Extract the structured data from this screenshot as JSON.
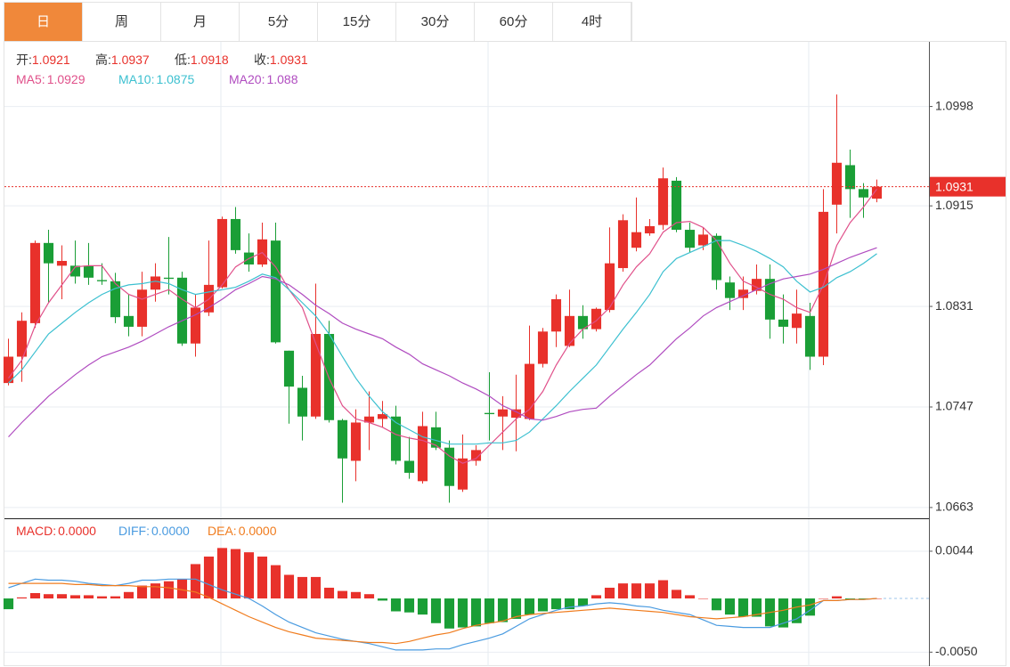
{
  "tabs": [
    "日",
    "周",
    "月",
    "5分",
    "15分",
    "30分",
    "60分",
    "4时"
  ],
  "active_tab": 0,
  "chart_data": [
    {
      "type": "candlestick",
      "header": [
        {
          "name": "开:",
          "value": 1.0921
        },
        {
          "name": "高:",
          "value": 1.0937
        },
        {
          "name": "低:",
          "value": 1.0918
        },
        {
          "name": "收:",
          "value": 1.0931
        }
      ],
      "header_value_color": "#e8312b",
      "categories": [
        null,
        null,
        null,
        null,
        null,
        null,
        null,
        null,
        null,
        null,
        null,
        null,
        null,
        null,
        null,
        null,
        null,
        null,
        null,
        null,
        null,
        null,
        null,
        null,
        null,
        null,
        null,
        null,
        null,
        null,
        null,
        null,
        null,
        null,
        null,
        null,
        null,
        null,
        null,
        null,
        null,
        null,
        null,
        null,
        null,
        null,
        null,
        null,
        null,
        null,
        null,
        null,
        null,
        null,
        null,
        null,
        null,
        null,
        null,
        null,
        null,
        null,
        null,
        null,
        null,
        null
      ],
      "open": [
        1.0767,
        1.0789,
        1.0817,
        1.0884,
        1.0865,
        1.0865,
        1.0865,
        1.0853,
        1.0852,
        1.0823,
        1.0814,
        1.0845,
        1.0855,
        1.0855,
        1.08,
        1.0826,
        1.0847,
        1.0904,
        1.0876,
        1.0866,
        1.0886,
        1.0794,
        1.0763,
        1.0739,
        1.0808,
        1.0736,
        1.0702,
        1.0734,
        1.0737,
        1.0739,
        1.0702,
        1.0685,
        1.073,
        1.0713,
        1.0678,
        1.0702,
        1.0742,
        1.0739,
        1.0738,
        1.0737,
        1.0783,
        1.081,
        1.0798,
        1.0823,
        1.0812,
        1.0828,
        1.0863,
        1.088,
        1.0892,
        1.0899,
        1.0936,
        1.0895,
        1.0882,
        1.089,
        1.0851,
        1.0838,
        1.0844,
        1.0854,
        1.082,
        1.0813,
        1.0823,
        1.0789,
        1.0916,
        1.0949,
        1.0929,
        1.0921
      ],
      "high": [
        1.0804,
        1.0826,
        1.0886,
        1.0895,
        1.0882,
        1.0886,
        1.0884,
        1.0867,
        1.0859,
        1.0841,
        1.086,
        1.0867,
        1.0889,
        1.086,
        1.0841,
        1.0886,
        1.0906,
        1.0914,
        1.0892,
        1.0901,
        1.0901,
        1.0794,
        1.0773,
        1.085,
        1.0819,
        1.0737,
        1.0745,
        1.076,
        1.0752,
        1.0748,
        1.0722,
        1.0743,
        1.0743,
        1.0719,
        1.0724,
        1.0715,
        1.0776,
        1.0756,
        1.0774,
        1.0815,
        1.0813,
        1.0841,
        1.0845,
        1.0832,
        1.083,
        1.0897,
        1.0908,
        1.0922,
        1.0904,
        1.0947,
        1.0939,
        1.0901,
        1.0897,
        1.0892,
        1.0856,
        1.0856,
        1.0866,
        1.0866,
        1.0841,
        1.0845,
        1.0834,
        1.0929,
        1.1008,
        1.0962,
        1.0934,
        1.0937
      ],
      "low": [
        1.0765,
        1.0768,
        1.0813,
        1.0834,
        1.0837,
        1.085,
        1.0849,
        1.0849,
        1.0817,
        1.0806,
        1.0806,
        1.0835,
        1.0841,
        1.0798,
        1.0789,
        1.0823,
        1.0846,
        1.0875,
        1.086,
        1.0864,
        1.08,
        1.0733,
        1.0719,
        1.0737,
        1.0734,
        1.0667,
        1.0685,
        1.0711,
        1.073,
        1.0699,
        1.0687,
        1.0683,
        1.0711,
        1.0667,
        1.0676,
        1.0698,
        1.0719,
        1.0711,
        1.071,
        1.0736,
        1.078,
        1.0797,
        1.0797,
        1.0804,
        1.081,
        1.0826,
        1.086,
        1.0877,
        1.089,
        1.0895,
        1.0893,
        1.0876,
        1.0878,
        1.0845,
        1.0828,
        1.0828,
        1.0841,
        1.0804,
        1.08,
        1.08,
        1.0778,
        1.0782,
        1.0892,
        1.0905,
        1.0905,
        1.0918
      ],
      "close": [
        1.0789,
        1.0819,
        1.0884,
        1.0867,
        1.0869,
        1.0856,
        1.0855,
        1.0852,
        1.0822,
        1.0814,
        1.0845,
        1.0856,
        1.0854,
        1.08,
        1.083,
        1.0849,
        1.0904,
        1.0878,
        1.0866,
        1.0887,
        1.0801,
        1.0764,
        1.0739,
        1.0808,
        1.0736,
        1.0704,
        1.0734,
        1.0739,
        1.0741,
        1.0702,
        1.0692,
        1.0731,
        1.0713,
        1.0681,
        1.0704,
        1.0711,
        1.0741,
        1.0745,
        1.0745,
        1.0783,
        1.081,
        1.0837,
        1.0823,
        1.0812,
        1.0829,
        1.0867,
        1.0903,
        1.0893,
        1.0898,
        1.0938,
        1.0895,
        1.088,
        1.0891,
        1.0853,
        1.0838,
        1.0845,
        1.0854,
        1.082,
        1.0814,
        1.0825,
        1.0789,
        1.091,
        1.0951,
        1.0929,
        1.0922,
        1.0931
      ],
      "up_color": "#e8312b",
      "down_color": "#1a9e36",
      "series": [
        {
          "name": "MA5:",
          "current": 1.0929,
          "color": "#e0508a",
          "values": [
            1.0771,
            1.0786,
            1.0815,
            1.0834,
            1.0849,
            1.0864,
            1.0865,
            1.0865,
            1.085,
            1.0841,
            1.0837,
            1.0841,
            1.0845,
            1.0837,
            1.083,
            1.0837,
            1.0849,
            1.0864,
            1.0871,
            1.0876,
            1.0864,
            1.0845,
            1.083,
            1.08,
            1.0771,
            1.0748,
            1.0737,
            1.0734,
            1.073,
            1.0724,
            1.0721,
            1.0719,
            1.0715,
            1.0706,
            1.07,
            1.0704,
            1.0715,
            1.0726,
            1.0737,
            1.0745,
            1.076,
            1.0782,
            1.08,
            1.0812,
            1.0819,
            1.083,
            1.0849,
            1.0864,
            1.0875,
            1.0893,
            1.0901,
            1.0902,
            1.0897,
            1.0886,
            1.0867,
            1.0852,
            1.0847,
            1.0841,
            1.0837,
            1.083,
            1.0826,
            1.0849,
            1.0882,
            1.0901,
            1.0914,
            1.0929
          ]
        },
        {
          "name": "MA10:",
          "current": 1.0875,
          "color": "#3cc0d0",
          "values": [
            1.0767,
            1.0778,
            1.0793,
            1.0808,
            1.0817,
            1.0826,
            1.0834,
            1.0841,
            1.0846,
            1.0849,
            1.085,
            1.0852,
            1.085,
            1.0845,
            1.0841,
            1.0843,
            1.0845,
            1.0847,
            1.0852,
            1.0858,
            1.0855,
            1.0845,
            1.0834,
            1.0823,
            1.0808,
            1.0789,
            1.0771,
            1.0756,
            1.0743,
            1.0734,
            1.0728,
            1.0722,
            1.0719,
            1.0716,
            1.0716,
            1.0716,
            1.0717,
            1.0717,
            1.0719,
            1.0726,
            1.0737,
            1.0748,
            1.076,
            1.0771,
            1.0782,
            1.0797,
            1.0812,
            1.0826,
            1.0841,
            1.086,
            1.0871,
            1.0876,
            1.0881,
            1.0886,
            1.0886,
            1.0882,
            1.0877,
            1.0871,
            1.0864,
            1.0852,
            1.0843,
            1.0847,
            1.0855,
            1.086,
            1.0867,
            1.0875
          ]
        },
        {
          "name": "MA20:",
          "current": 1.088,
          "color": "#b04cc0",
          "values": [
            1.0722,
            1.0734,
            1.0745,
            1.0756,
            1.0765,
            1.0774,
            1.0782,
            1.0789,
            1.0793,
            1.0797,
            1.0802,
            1.0808,
            1.0814,
            1.0819,
            1.0824,
            1.083,
            1.0837,
            1.0845,
            1.085,
            1.0856,
            1.0854,
            1.0849,
            1.0841,
            1.0832,
            1.0825,
            1.0817,
            1.0812,
            1.0808,
            1.0804,
            1.0797,
            1.0791,
            1.0783,
            1.0778,
            1.0773,
            1.0767,
            1.0762,
            1.0756,
            1.0748,
            1.0743,
            1.0737,
            1.0736,
            1.0739,
            1.0743,
            1.0745,
            1.0746,
            1.0756,
            1.0765,
            1.0774,
            1.0782,
            1.0793,
            1.0804,
            1.0813,
            1.0823,
            1.083,
            1.0835,
            1.084,
            1.0845,
            1.085,
            1.0854,
            1.0856,
            1.0858,
            1.0862,
            1.0867,
            1.0872,
            1.0876,
            1.088
          ]
        }
      ],
      "last_price": 1.0931,
      "last_price_color": "#e8312b",
      "ylim": [
        1.0654,
        1.1052
      ],
      "yticks": [
        1.0998,
        1.0915,
        1.0831,
        1.0747,
        1.0663
      ],
      "grid": true
    },
    {
      "type": "macd",
      "categories": [
        null,
        null,
        null,
        null,
        null,
        null,
        null,
        null,
        null,
        null,
        null,
        null,
        null,
        null,
        null,
        null,
        null,
        null,
        null,
        null,
        null,
        null,
        null,
        null,
        null,
        null,
        null,
        null,
        null,
        null,
        null,
        null,
        null,
        null,
        null,
        null,
        null,
        null,
        null,
        null,
        null,
        null,
        null,
        null,
        null,
        null,
        null,
        null,
        null,
        null,
        null,
        null,
        null,
        null,
        null,
        null,
        null,
        null,
        null,
        null,
        null,
        null,
        null,
        null,
        null,
        null
      ],
      "up_color": "#e8312b",
      "down_color": "#1a9e36",
      "series": [
        {
          "name": "MACD:",
          "type": "bar",
          "current": 0,
          "current_label": "0.0000",
          "color": "#e8312b",
          "values": [
            -0.001,
            0.0001,
            0.0005,
            0.0004,
            0.0004,
            0.0003,
            0.0003,
            0.0002,
            0.0002,
            0.0006,
            0.0012,
            0.0014,
            0.0016,
            0.0018,
            0.0032,
            0.0039,
            0.0047,
            0.0046,
            0.0043,
            0.0039,
            0.0031,
            0.0022,
            0.002,
            0.002,
            0.001,
            0.0007,
            0.0006,
            0.0004,
            -0.0002,
            -0.0012,
            -0.0013,
            -0.0015,
            -0.0023,
            -0.0028,
            -0.0027,
            -0.0026,
            -0.0023,
            -0.0022,
            -0.0019,
            -0.0015,
            -0.0012,
            -0.001,
            -0.001,
            -0.0007,
            0.0003,
            0.001,
            0.0014,
            0.0014,
            0.0014,
            0.0017,
            0.0008,
            0.0003,
            0.0,
            -0.0011,
            -0.0015,
            -0.0017,
            -0.0017,
            -0.0026,
            -0.0027,
            -0.0023,
            -0.0016,
            0.0,
            0.0002,
            -0.0001,
            -0.0001,
            0.0
          ]
        },
        {
          "name": "DIFF:",
          "type": "line",
          "current": 0,
          "current_label": "0.0000",
          "color": "#4a9be0",
          "values": [
            0.001,
            0.0014,
            0.0018,
            0.0017,
            0.0017,
            0.0016,
            0.0014,
            0.0013,
            0.0012,
            0.0014,
            0.0017,
            0.0017,
            0.0018,
            0.0018,
            0.0018,
            0.0013,
            0.0008,
            0.0004,
            0.0,
            -0.0007,
            -0.0015,
            -0.0022,
            -0.0027,
            -0.0032,
            -0.0035,
            -0.0038,
            -0.004,
            -0.0042,
            -0.0045,
            -0.0048,
            -0.0048,
            -0.0048,
            -0.0047,
            -0.0047,
            -0.0043,
            -0.004,
            -0.0037,
            -0.0033,
            -0.0026,
            -0.0019,
            -0.0015,
            -0.0011,
            -0.0008,
            -0.0007,
            -0.0005,
            -0.0004,
            -0.0005,
            -0.0007,
            -0.0008,
            -0.0011,
            -0.0013,
            -0.0015,
            -0.002,
            -0.0025,
            -0.0026,
            -0.0027,
            -0.0027,
            -0.0027,
            -0.0023,
            -0.0019,
            -0.0011,
            -0.0002,
            -0.0002,
            -0.0001,
            -0.0001,
            0.0
          ]
        },
        {
          "name": "DEA:",
          "type": "line",
          "current": 0,
          "current_label": "0.0000",
          "color": "#f07c1e",
          "values": [
            0.0014,
            0.0014,
            0.0014,
            0.0014,
            0.0014,
            0.0013,
            0.0013,
            0.0012,
            0.0012,
            0.0012,
            0.0011,
            0.0011,
            0.001,
            0.0008,
            0.0006,
            0.0001,
            -0.0005,
            -0.0011,
            -0.0017,
            -0.0022,
            -0.0027,
            -0.0031,
            -0.0034,
            -0.0037,
            -0.0038,
            -0.0039,
            -0.004,
            -0.0041,
            -0.0041,
            -0.0042,
            -0.004,
            -0.0037,
            -0.0034,
            -0.0032,
            -0.0028,
            -0.0025,
            -0.0023,
            -0.0021,
            -0.0017,
            -0.0015,
            -0.0014,
            -0.0013,
            -0.0012,
            -0.0011,
            -0.001,
            -0.0009,
            -0.001,
            -0.0011,
            -0.0012,
            -0.0013,
            -0.0015,
            -0.0017,
            -0.0018,
            -0.0019,
            -0.0018,
            -0.0017,
            -0.0015,
            -0.0013,
            -0.0011,
            -0.0008,
            -0.0006,
            -0.0002,
            -0.0002,
            -0.0001,
            -0.0001,
            0.0
          ]
        }
      ],
      "ylim": [
        -0.0063,
        0.0073
      ],
      "yticks": [
        0.0044,
        {
          "value": -0.005,
          "label": "-0.0050"
        }
      ],
      "grid": true
    }
  ]
}
